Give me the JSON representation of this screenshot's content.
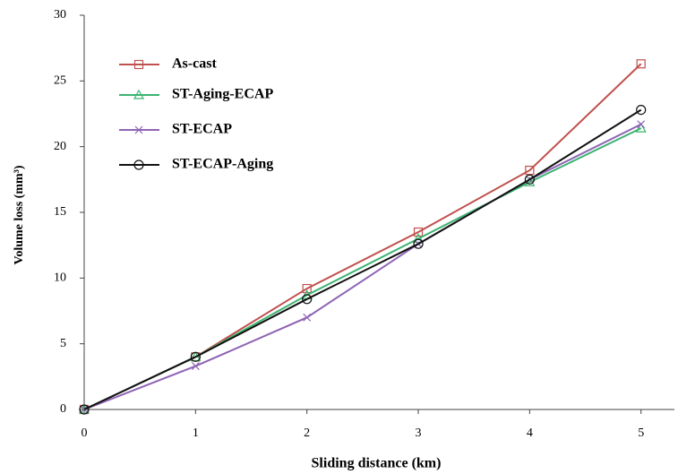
{
  "chart_data": {
    "type": "line",
    "x_label": "Sliding distance (km)",
    "y_label": "Volume loss (mm³)",
    "x": [
      0,
      1,
      2,
      3,
      4,
      5
    ],
    "xlim": [
      0,
      5.3
    ],
    "xticks": [
      0,
      1,
      2,
      3,
      4,
      5
    ],
    "ylim": [
      0,
      30
    ],
    "yticks": [
      0,
      5,
      10,
      15,
      20,
      25,
      30
    ],
    "grid": false,
    "legend": "upper left",
    "series": [
      {
        "name": "As-cast",
        "color": "#c0504d",
        "marker": "square",
        "values": [
          0,
          4.0,
          9.2,
          13.5,
          18.2,
          26.3
        ]
      },
      {
        "name": "ST-Aging-ECAP",
        "color": "#3cb371",
        "marker": "triangle",
        "values": [
          0,
          4.0,
          8.7,
          13.0,
          17.3,
          21.4
        ]
      },
      {
        "name": "ST-ECAP",
        "color": "#8e63b5",
        "marker": "x",
        "values": [
          0,
          3.3,
          7.0,
          12.6,
          17.5,
          21.7
        ]
      },
      {
        "name": "ST-ECAP-Aging",
        "color": "#111111",
        "marker": "circle",
        "values": [
          0,
          4.0,
          8.4,
          12.6,
          17.5,
          22.8
        ]
      }
    ]
  }
}
